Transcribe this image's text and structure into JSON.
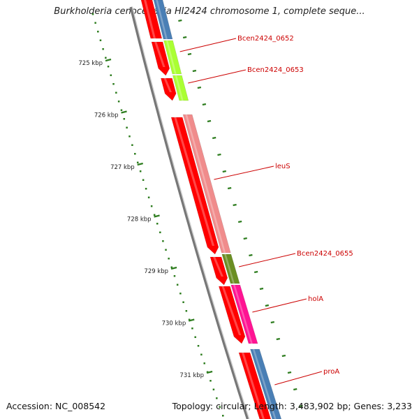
{
  "title": "Burkholderia cenocepacia HI2424 chromosome 1, complete seque...",
  "accession": "Accession: NC_008542",
  "topology": "Topology: circular; Length: 3,483,902 bp; Genes: 3,233",
  "colors": {
    "cds_strand": "#ff0000",
    "backbone": "#777777",
    "label_line": "#cc0000",
    "tick": "#2e7d1f",
    "genes": {
      "blue": "#4a7fb5",
      "lime": "#aaff33",
      "salmon": "#f08c8c",
      "olive": "#6b8e23",
      "magenta": "#ff1493"
    }
  },
  "kbp_ticks": [
    "725 kbp",
    "726 kbp",
    "727 kbp",
    "728 kbp",
    "729 kbp",
    "730 kbp",
    "731 kbp"
  ],
  "genes": [
    {
      "label": "",
      "color": "blue"
    },
    {
      "label": "Bcen2424_0652",
      "color": "lime"
    },
    {
      "label": "Bcen2424_0653",
      "color": "lime"
    },
    {
      "label": "leuS",
      "color": "salmon"
    },
    {
      "label": "Bcen2424_0655",
      "color": "olive"
    },
    {
      "label": "holA",
      "color": "magenta"
    },
    {
      "label": "proA",
      "color": "blue"
    }
  ]
}
